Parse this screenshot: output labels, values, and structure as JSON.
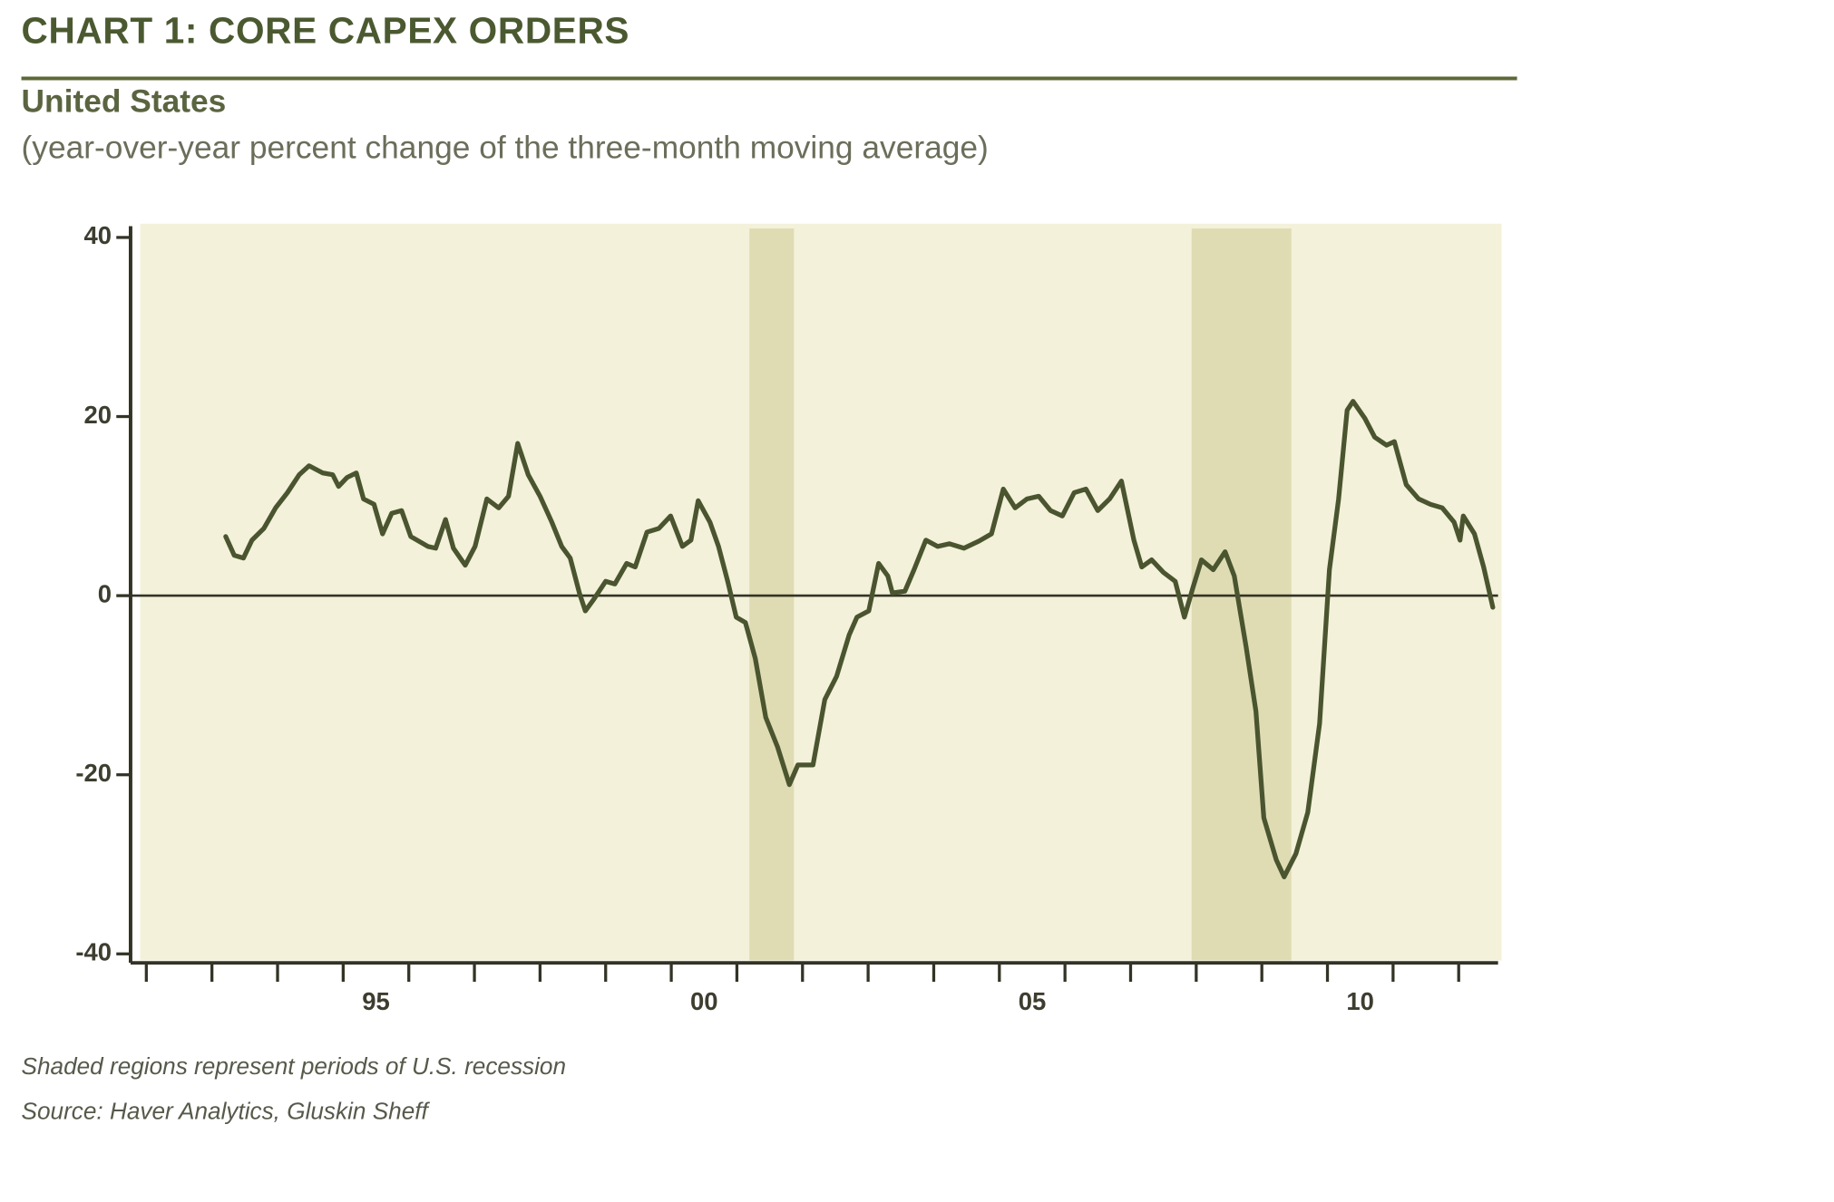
{
  "chart_data": {
    "type": "line",
    "title": "CHART 1: CORE CAPEX ORDERS",
    "subtitle": "United States",
    "y_label": "(year-over-year percent change of the three-month moving average)",
    "notes": [
      "Shaded regions represent periods of U.S. recession",
      "Source: Haver Analytics, Gluskin Sheff"
    ],
    "xlim": [
      1991.76,
      2012.6
    ],
    "xticks": [
      {
        "value": 1995.5,
        "label": "95"
      },
      {
        "value": 2000.5,
        "label": "00"
      },
      {
        "value": 2005.5,
        "label": "05"
      },
      {
        "value": 2010.5,
        "label": "10"
      }
    ],
    "xminor_ticks": [
      1992,
      1993,
      1994,
      1995,
      1996,
      1997,
      1998,
      1999,
      2000,
      2001,
      2002,
      2003,
      2004,
      2005,
      2006,
      2007,
      2008,
      2009,
      2010,
      2011,
      2012
    ],
    "ylim": [
      -41,
      41
    ],
    "yticks": [
      -40,
      -20,
      0,
      20,
      40
    ],
    "zero_line": true,
    "recessions": [
      {
        "start": 2001.19,
        "end": 2001.87
      },
      {
        "start": 2007.93,
        "end": 2009.45
      }
    ],
    "recession_color": "#dfdcb4",
    "background": "#f3f1da",
    "series": [
      {
        "color": "#4a5530",
        "x": [
          1993.21,
          1993.34,
          1993.48,
          1993.61,
          1993.79,
          1993.97,
          1994.15,
          1994.33,
          1994.48,
          1994.69,
          1994.84,
          1994.93,
          1995.06,
          1995.2,
          1995.31,
          1995.47,
          1995.6,
          1995.74,
          1995.89,
          1996.03,
          1996.29,
          1996.41,
          1996.56,
          1996.68,
          1996.86,
          1997.01,
          1997.19,
          1997.37,
          1997.52,
          1997.66,
          1997.82,
          1998.0,
          1998.18,
          1998.33,
          1998.46,
          1998.6,
          1998.69,
          1998.82,
          1999.0,
          1999.14,
          1999.32,
          1999.45,
          1999.63,
          1999.81,
          1999.99,
          2000.17,
          2000.3,
          2000.41,
          2000.59,
          2000.72,
          2000.86,
          2000.99,
          2001.13,
          2001.28,
          2001.44,
          2001.62,
          2001.8,
          2001.93,
          2002.16,
          2002.34,
          2002.52,
          2002.71,
          2002.83,
          2003.01,
          2003.16,
          2003.3,
          2003.37,
          2003.56,
          2003.7,
          2003.88,
          2004.06,
          2004.24,
          2004.46,
          2004.69,
          2004.88,
          2005.06,
          2005.24,
          2005.42,
          2005.6,
          2005.78,
          2005.96,
          2006.14,
          2006.32,
          2006.5,
          2006.68,
          2006.86,
          2007.05,
          2007.17,
          2007.32,
          2007.5,
          2007.68,
          2007.82,
          2007.95,
          2008.08,
          2008.26,
          2008.44,
          2008.58,
          2008.76,
          2008.91,
          2009.03,
          2009.22,
          2009.34,
          2009.52,
          2009.7,
          2009.88,
          2010.03,
          2010.17,
          2010.3,
          2010.39,
          2010.57,
          2010.72,
          2010.9,
          2011.02,
          2011.2,
          2011.39,
          2011.57,
          2011.75,
          2011.93,
          2012.02,
          2012.07,
          2012.24,
          2012.38,
          2012.52
        ],
        "values": [
          6.6,
          4.5,
          4.2,
          6.2,
          7.5,
          9.8,
          11.5,
          13.5,
          14.5,
          13.7,
          13.5,
          12.2,
          13.2,
          13.7,
          10.8,
          10.2,
          6.9,
          9.2,
          9.5,
          6.6,
          5.5,
          5.3,
          8.5,
          5.3,
          3.4,
          5.5,
          10.8,
          9.8,
          11.1,
          17,
          13.5,
          11.1,
          8.2,
          5.5,
          4.2,
          0.3,
          -1.7,
          -0.4,
          1.6,
          1.3,
          3.6,
          3.2,
          7.1,
          7.5,
          8.9,
          5.5,
          6.2,
          10.6,
          8.2,
          5.5,
          1.6,
          -2.4,
          -3,
          -7,
          -13.6,
          -16.9,
          -21.1,
          -18.9,
          -18.9,
          -11.6,
          -9,
          -4.4,
          -2.4,
          -1.7,
          3.6,
          2.2,
          0.3,
          0.5,
          2.9,
          6.2,
          5.5,
          5.8,
          5.3,
          6.1,
          6.9,
          11.9,
          9.8,
          10.8,
          11.1,
          9.5,
          8.9,
          11.5,
          11.9,
          9.5,
          10.8,
          12.8,
          6.2,
          3.2,
          4,
          2.6,
          1.6,
          -2.4,
          0.9,
          4,
          2.9,
          4.9,
          2.2,
          -5.7,
          -12.9,
          -24.8,
          -29.5,
          -31.4,
          -28.8,
          -24.2,
          -14.3,
          2.9,
          10.8,
          20.7,
          21.7,
          19.8,
          17.7,
          16.8,
          17.2,
          12.4,
          10.8,
          10.2,
          9.8,
          8.2,
          6.2,
          8.9,
          6.9,
          3.2,
          -1.3
        ]
      }
    ]
  }
}
